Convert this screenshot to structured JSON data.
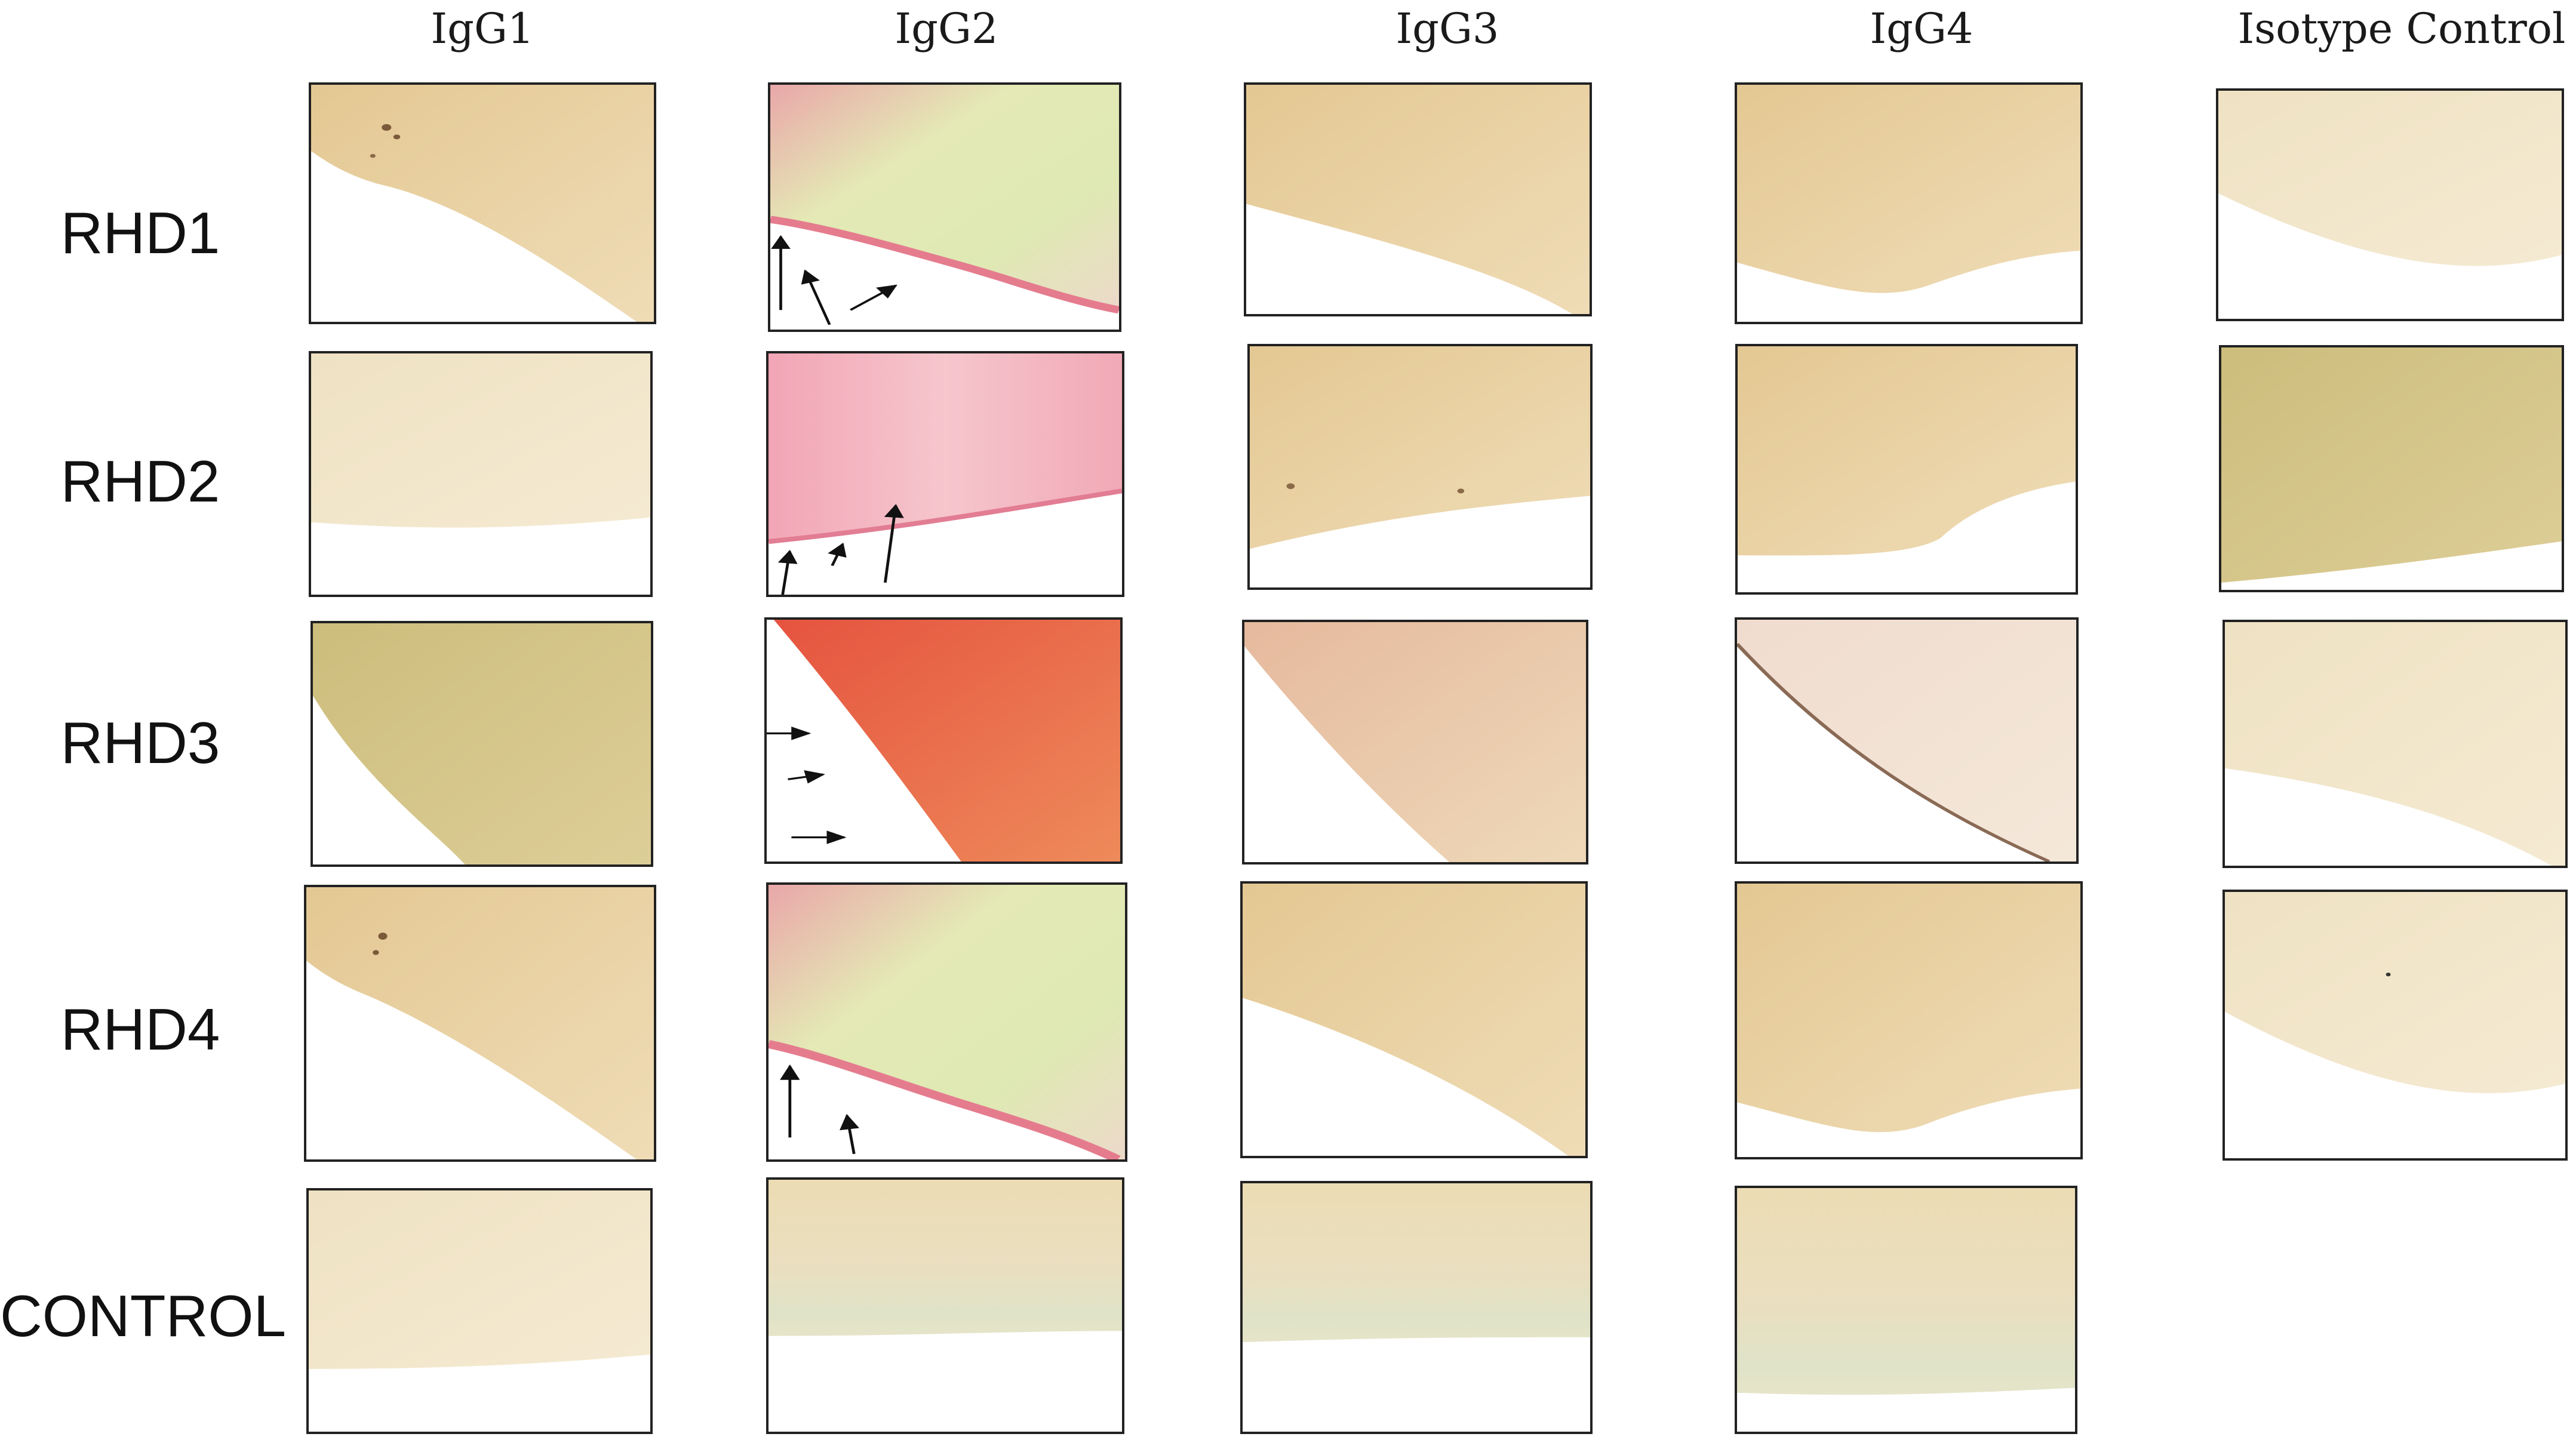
{
  "columns": [
    "IgG1",
    "IgG2",
    "IgG3",
    "IgG4",
    "Isotype Control"
  ],
  "rows": [
    "RHD1",
    "RHD2",
    "RHD3",
    "RHD4",
    "CONTROL"
  ],
  "colors": {
    "tan_tissue": "#e9d3a6",
    "light_tan": "#eedfc0",
    "olive_tissue": "#d5c58a",
    "pink_stain": "#ef9aaa",
    "red_stain": "#e8614a",
    "green_yellow_stain": "#dfe9b4",
    "pale_control": "#e8e0c2",
    "background": "#ffffff"
  },
  "panels": [
    {
      "row": "RHD1",
      "col": "IgG1",
      "tissue": "tan",
      "arrows": 0
    },
    {
      "row": "RHD1",
      "col": "IgG2",
      "tissue": "pink-green",
      "arrows": 3
    },
    {
      "row": "RHD1",
      "col": "IgG3",
      "tissue": "tan",
      "arrows": 0
    },
    {
      "row": "RHD1",
      "col": "IgG4",
      "tissue": "tan",
      "arrows": 0
    },
    {
      "row": "RHD1",
      "col": "Isotype Control",
      "tissue": "pale-tan",
      "arrows": 0
    },
    {
      "row": "RHD2",
      "col": "IgG1",
      "tissue": "pale-tan",
      "arrows": 0
    },
    {
      "row": "RHD2",
      "col": "IgG2",
      "tissue": "pink",
      "arrows": 3
    },
    {
      "row": "RHD2",
      "col": "IgG3",
      "tissue": "tan",
      "arrows": 0
    },
    {
      "row": "RHD2",
      "col": "IgG4",
      "tissue": "tan",
      "arrows": 0
    },
    {
      "row": "RHD2",
      "col": "Isotype Control",
      "tissue": "olive",
      "arrows": 0
    },
    {
      "row": "RHD3",
      "col": "IgG1",
      "tissue": "olive",
      "arrows": 0
    },
    {
      "row": "RHD3",
      "col": "IgG2",
      "tissue": "red-orange",
      "arrows": 3
    },
    {
      "row": "RHD3",
      "col": "IgG3",
      "tissue": "pink-tan",
      "arrows": 0
    },
    {
      "row": "RHD3",
      "col": "IgG4",
      "tissue": "pale-pink",
      "arrows": 0
    },
    {
      "row": "RHD3",
      "col": "Isotype Control",
      "tissue": "pale-tan",
      "arrows": 0
    },
    {
      "row": "RHD4",
      "col": "IgG1",
      "tissue": "tan",
      "arrows": 0
    },
    {
      "row": "RHD4",
      "col": "IgG2",
      "tissue": "pink-green",
      "arrows": 2
    },
    {
      "row": "RHD4",
      "col": "IgG3",
      "tissue": "tan",
      "arrows": 0
    },
    {
      "row": "RHD4",
      "col": "IgG4",
      "tissue": "tan",
      "arrows": 0
    },
    {
      "row": "RHD4",
      "col": "Isotype Control",
      "tissue": "pale-tan",
      "arrows": 0
    },
    {
      "row": "CONTROL",
      "col": "IgG1",
      "tissue": "pale-tan",
      "arrows": 0
    },
    {
      "row": "CONTROL",
      "col": "IgG2",
      "tissue": "pale-tan",
      "arrows": 0
    },
    {
      "row": "CONTROL",
      "col": "IgG3",
      "tissue": "pale-tan",
      "arrows": 0
    },
    {
      "row": "CONTROL",
      "col": "IgG4",
      "tissue": "pale-tan",
      "arrows": 0
    }
  ]
}
